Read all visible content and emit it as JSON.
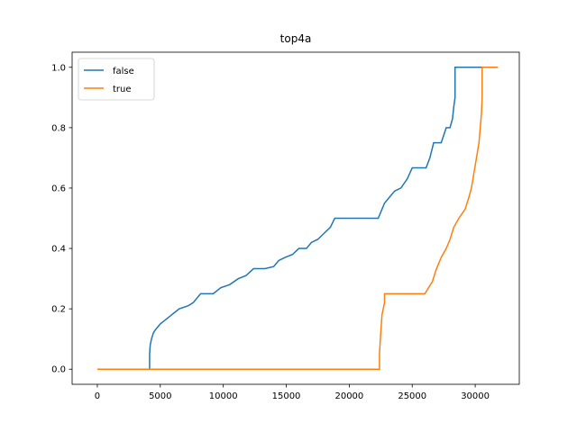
{
  "chart_data": {
    "type": "line",
    "title": "top4a",
    "xlabel": "",
    "ylabel": "",
    "xlim": [
      -2000,
      33500
    ],
    "ylim": [
      -0.05,
      1.05
    ],
    "xticks": [
      0,
      5000,
      10000,
      15000,
      20000,
      25000,
      30000
    ],
    "xtick_labels": [
      "0",
      "5000",
      "10000",
      "15000",
      "20000",
      "25000",
      "30000"
    ],
    "yticks": [
      0.0,
      0.2,
      0.4,
      0.6,
      0.8,
      1.0
    ],
    "ytick_labels": [
      "0.0",
      "0.2",
      "0.4",
      "0.6",
      "0.8",
      "1.0"
    ],
    "grid": false,
    "legend_position": "top-left",
    "series": [
      {
        "name": "false",
        "color": "#1f77b4",
        "x": [
          0,
          4150,
          4150,
          4200,
          4300,
          4450,
          4600,
          4800,
          5000,
          5300,
          5600,
          5900,
          6200,
          6500,
          7200,
          7600,
          8200,
          9200,
          9800,
          10500,
          11200,
          11800,
          12400,
          13300,
          14000,
          14400,
          14900,
          15500,
          16000,
          16600,
          17000,
          17500,
          18000,
          18500,
          18850,
          18850,
          22300,
          22500,
          22800,
          23200,
          23600,
          24100,
          24600,
          25000,
          25200,
          26100,
          26400,
          26700,
          27300,
          27700,
          28000,
          28200,
          28300,
          28400,
          28400,
          30500,
          31800
        ],
        "y": [
          0,
          0,
          0.05,
          0.08,
          0.1,
          0.12,
          0.13,
          0.14,
          0.15,
          0.16,
          0.17,
          0.18,
          0.19,
          0.2,
          0.21,
          0.22,
          0.25,
          0.25,
          0.27,
          0.28,
          0.3,
          0.31,
          0.333,
          0.333,
          0.34,
          0.36,
          0.37,
          0.38,
          0.4,
          0.4,
          0.42,
          0.43,
          0.45,
          0.47,
          0.5,
          0.5,
          0.5,
          0.52,
          0.55,
          0.57,
          0.59,
          0.6,
          0.63,
          0.667,
          0.667,
          0.667,
          0.7,
          0.75,
          0.75,
          0.8,
          0.8,
          0.83,
          0.87,
          0.9,
          1.0,
          1.0,
          1.0
        ],
        "label": "false"
      },
      {
        "name": "true",
        "color": "#ff7f0e",
        "x": [
          0,
          22400,
          22400,
          22500,
          22600,
          22800,
          22800,
          26000,
          26300,
          26600,
          26900,
          27300,
          27700,
          28000,
          28300,
          28700,
          29200,
          29500,
          29700,
          29900,
          30100,
          30300,
          30400,
          30500,
          30550,
          30550,
          31800
        ],
        "y": [
          0,
          0,
          0.05,
          0.12,
          0.18,
          0.22,
          0.25,
          0.25,
          0.27,
          0.29,
          0.33,
          0.37,
          0.4,
          0.43,
          0.47,
          0.5,
          0.53,
          0.57,
          0.6,
          0.65,
          0.7,
          0.75,
          0.8,
          0.85,
          0.9,
          1.0,
          1.0
        ],
        "label": "true"
      }
    ]
  }
}
